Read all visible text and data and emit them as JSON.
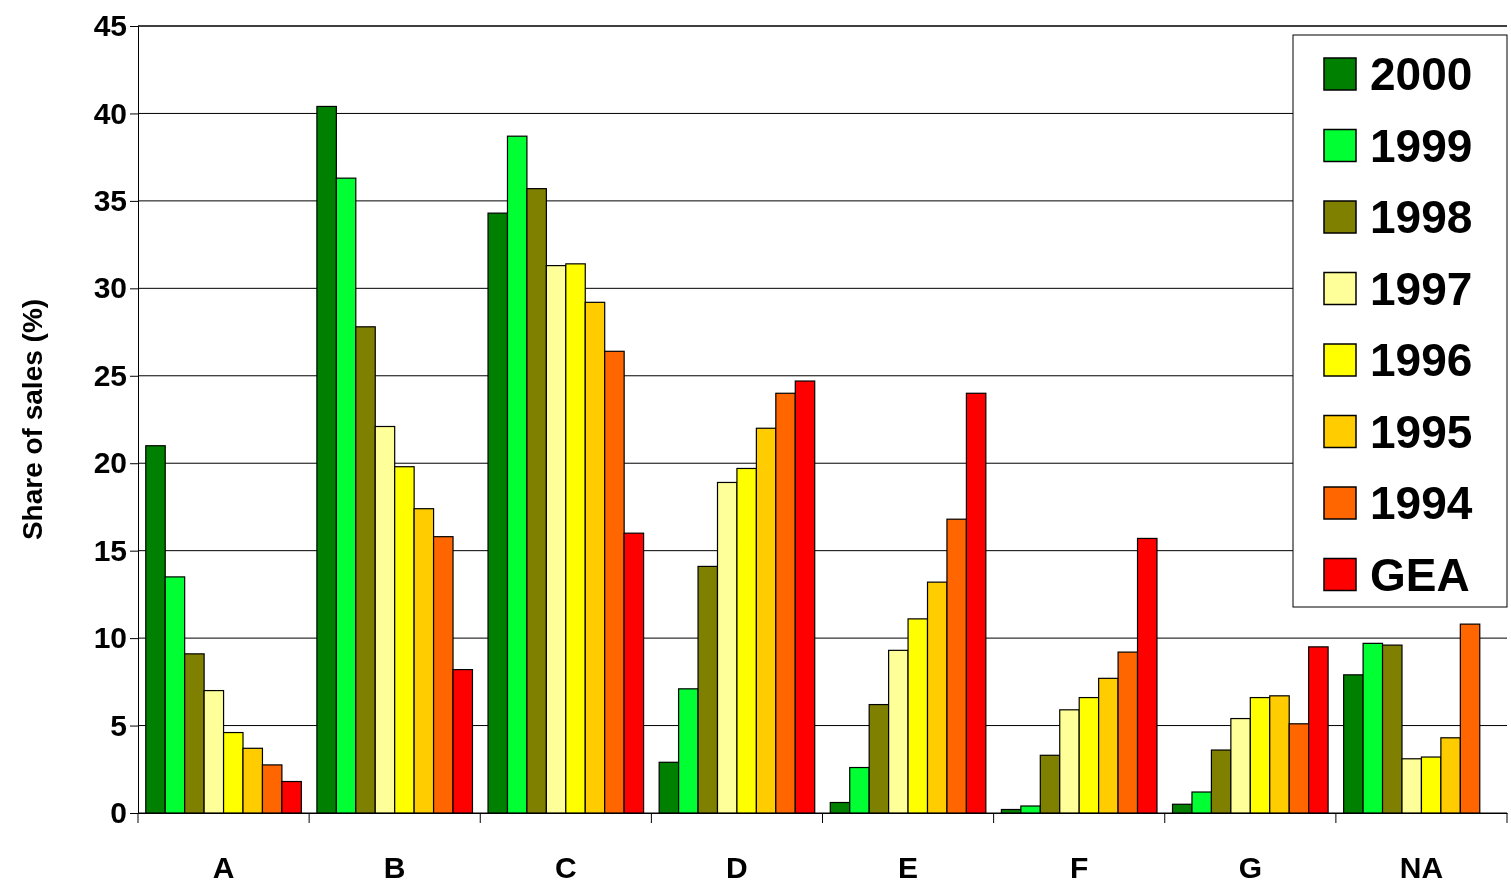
{
  "chart_data": {
    "type": "bar",
    "ylabel": "Share of sales (%)",
    "categories": [
      "A",
      "B",
      "C",
      "D",
      "E",
      "F",
      "G",
      "NA"
    ],
    "ylim": [
      0,
      45
    ],
    "yticks": [
      0,
      5,
      10,
      15,
      20,
      25,
      30,
      35,
      40,
      45
    ],
    "grid": "y",
    "legend": "top right",
    "series": [
      {
        "name": "2000",
        "color": "#008000",
        "values": [
          21.0,
          40.4,
          34.3,
          2.9,
          0.6,
          0.2,
          0.5,
          7.9
        ]
      },
      {
        "name": "1999",
        "color": "#00ff33",
        "values": [
          13.5,
          36.3,
          38.7,
          7.1,
          2.6,
          0.4,
          1.2,
          9.7
        ]
      },
      {
        "name": "1998",
        "color": "#808000",
        "values": [
          9.1,
          27.8,
          35.7,
          14.1,
          6.2,
          3.3,
          3.6,
          9.6
        ]
      },
      {
        "name": "1997",
        "color": "#ffff99",
        "values": [
          7.0,
          22.1,
          31.3,
          18.9,
          9.3,
          5.9,
          5.4,
          3.1
        ]
      },
      {
        "name": "1996",
        "color": "#ffff00",
        "values": [
          4.6,
          19.8,
          31.4,
          19.7,
          11.1,
          6.6,
          6.6,
          3.2
        ]
      },
      {
        "name": "1995",
        "color": "#ffcc00",
        "values": [
          3.7,
          17.4,
          29.2,
          22.0,
          13.2,
          7.7,
          6.7,
          4.3
        ]
      },
      {
        "name": "1994",
        "color": "#ff6600",
        "values": [
          2.75,
          15.8,
          26.4,
          24.0,
          16.8,
          9.2,
          5.1,
          10.8
        ]
      },
      {
        "name": "GEA",
        "color": "#ff0000",
        "values": [
          1.8,
          8.2,
          16.0,
          24.7,
          24.0,
          15.7,
          9.5,
          null
        ]
      }
    ]
  }
}
